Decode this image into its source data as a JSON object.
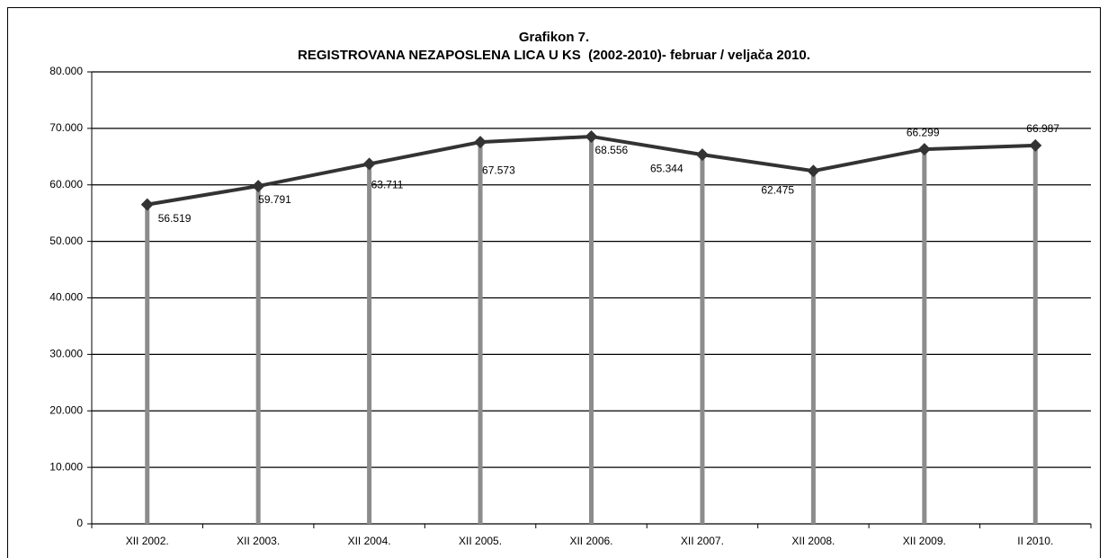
{
  "chart_data": {
    "type": "line",
    "title": "Grafikon 7.",
    "subtitle": "REGISTROVANA NEZAPOSLENA LICA U KS  (2002-2010)- februar / veljača 2010.",
    "categories": [
      "XII 2002.",
      "XII 2003.",
      "XII 2004.",
      "XII 2005.",
      "XII 2006.",
      "XII 2007.",
      "XII 2008.",
      "XII 2009.",
      "II 2010."
    ],
    "series": [
      {
        "name": "Nezaposlena lica",
        "color": "#333333",
        "values": [
          56519,
          59791,
          63711,
          67573,
          68556,
          65344,
          62475,
          66299,
          66987
        ],
        "value_labels": [
          "56.519",
          "59.791",
          "63.711",
          "67.573",
          "68.556",
          "65.344",
          "62.475",
          "66.299",
          "66.987"
        ]
      }
    ],
    "ylim": [
      0,
      80000
    ],
    "yticks": [
      0,
      {
        "value": 10000,
        "label": "10.000"
      },
      {
        "value": 20000,
        "label": "20.000"
      },
      {
        "value": 30000,
        "label": "30.000"
      },
      {
        "value": 40000,
        "label": "40.000"
      },
      {
        "value": 50000,
        "label": "50.000"
      },
      {
        "value": 60000,
        "label": "60.000"
      },
      {
        "value": 70000,
        "label": "70.000"
      },
      {
        "value": 80000,
        "label": "80.000"
      }
    ],
    "grid": true,
    "drop_line_color": "#8c8c8c"
  }
}
